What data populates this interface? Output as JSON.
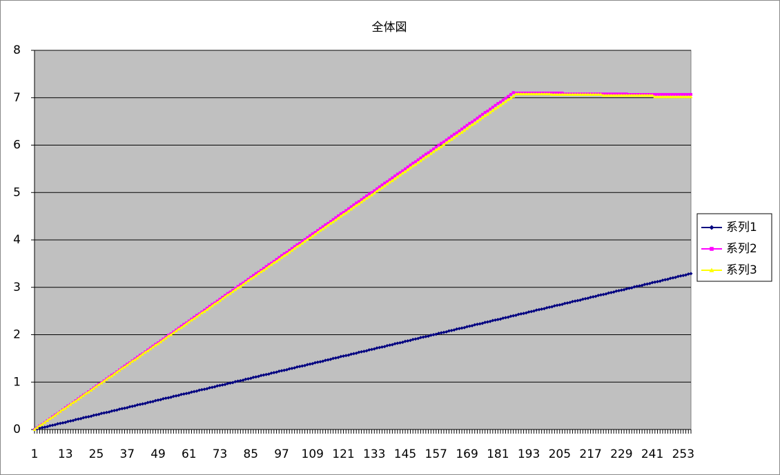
{
  "chart_data": {
    "type": "line",
    "title": "全体図",
    "categories": [
      1,
      null,
      null,
      null,
      null,
      null,
      null,
      null,
      null,
      null,
      null,
      null,
      13,
      null,
      null,
      null,
      null,
      null,
      null,
      null,
      null,
      null,
      null,
      null,
      25,
      null,
      null,
      null,
      null,
      null,
      null,
      null,
      null,
      null,
      null,
      null,
      37,
      null,
      null,
      null,
      null,
      null,
      null,
      null,
      null,
      null,
      null,
      null,
      49,
      null,
      null,
      null,
      null,
      null,
      null,
      null,
      null,
      null,
      null,
      null,
      61,
      null,
      null,
      null,
      null,
      null,
      null,
      null,
      null,
      null,
      null,
      null,
      73,
      null,
      null,
      null,
      null,
      null,
      null,
      null,
      null,
      null,
      null,
      null,
      85,
      null,
      null,
      null,
      null,
      null,
      null,
      null,
      null,
      null,
      null,
      null,
      97,
      null,
      null,
      null,
      null,
      null,
      null,
      null,
      null,
      null,
      null,
      null,
      109,
      null,
      null,
      null,
      null,
      null,
      null,
      null,
      null,
      null,
      null,
      null,
      121,
      null,
      null,
      null,
      null,
      null,
      null,
      null,
      null,
      null,
      null,
      null,
      133,
      null,
      null,
      null,
      null,
      null,
      null,
      null,
      null,
      null,
      null,
      null,
      145,
      null,
      null,
      null,
      null,
      null,
      null,
      null,
      null,
      null,
      null,
      null,
      157,
      null,
      null,
      null,
      null,
      null,
      null,
      null,
      null,
      null,
      null,
      null,
      169,
      null,
      null,
      null,
      null,
      null,
      null,
      null,
      null,
      null,
      null,
      null,
      181,
      null,
      null,
      null,
      null,
      null,
      null,
      null,
      null,
      null,
      null,
      null,
      193,
      null,
      null,
      null,
      null,
      null,
      null,
      null,
      null,
      null,
      null,
      null,
      205,
      null,
      null,
      null,
      null,
      null,
      null,
      null,
      null,
      null,
      null,
      null,
      217,
      null,
      null,
      null,
      null,
      null,
      null,
      null,
      null,
      null,
      null,
      null,
      229,
      null,
      null,
      null,
      null,
      null,
      null,
      null,
      null,
      null,
      null,
      null,
      241,
      null,
      null,
      null,
      null,
      null,
      null,
      null,
      null,
      null,
      null,
      null,
      253,
      null,
      null,
      null
    ],
    "series": [
      {
        "name": "系列1",
        "color": "#000080",
        "marker": "diamond",
        "values": [
          0,
          0.01,
          0.03,
          0.04,
          0.05,
          0.06,
          0.08,
          0.09,
          0.1,
          0.12,
          0.13,
          0.14,
          0.15,
          0.17,
          0.18,
          0.19,
          0.21,
          0.22,
          0.23,
          0.25,
          0.26,
          0.27,
          0.28,
          0.3,
          0.31,
          0.32,
          0.34,
          0.35,
          0.36,
          0.37,
          0.39,
          0.4,
          0.41,
          0.43,
          0.44,
          0.45,
          0.46,
          0.48,
          0.49,
          0.5,
          0.52,
          0.53,
          0.54,
          0.55,
          0.57,
          0.58,
          0.59,
          0.61,
          0.62,
          0.63,
          0.65,
          0.66,
          0.67,
          0.68,
          0.7,
          0.71,
          0.72,
          0.74,
          0.75,
          0.76,
          0.77,
          0.79,
          0.8,
          0.81,
          0.83,
          0.84,
          0.85,
          0.86,
          0.88,
          0.89,
          0.9,
          0.92,
          0.93,
          0.94,
          0.95,
          0.97,
          0.98,
          0.99,
          1.01,
          1.02,
          1.03,
          1.04,
          1.06,
          1.07,
          1.08,
          1.1,
          1.11,
          1.12,
          1.14,
          1.15,
          1.16,
          1.17,
          1.19,
          1.2,
          1.21,
          1.23,
          1.24,
          1.25,
          1.26,
          1.28,
          1.29,
          1.3,
          1.32,
          1.33,
          1.34,
          1.35,
          1.37,
          1.38,
          1.39,
          1.41,
          1.42,
          1.43,
          1.44,
          1.46,
          1.47,
          1.48,
          1.5,
          1.51,
          1.52,
          1.54,
          1.55,
          1.56,
          1.57,
          1.59,
          1.6,
          1.61,
          1.63,
          1.64,
          1.65,
          1.66,
          1.68,
          1.69,
          1.7,
          1.72,
          1.73,
          1.74,
          1.75,
          1.77,
          1.78,
          1.79,
          1.81,
          1.82,
          1.83,
          1.84,
          1.86,
          1.87,
          1.88,
          1.9,
          1.91,
          1.92,
          1.94,
          1.95,
          1.96,
          1.97,
          1.99,
          2,
          2.01,
          2.03,
          2.04,
          2.05,
          2.06,
          2.08,
          2.09,
          2.1,
          2.12,
          2.13,
          2.14,
          2.15,
          2.17,
          2.18,
          2.19,
          2.21,
          2.22,
          2.23,
          2.24,
          2.26,
          2.27,
          2.28,
          2.3,
          2.31,
          2.32,
          2.33,
          2.35,
          2.36,
          2.37,
          2.39,
          2.4,
          2.41,
          2.43,
          2.44,
          2.45,
          2.46,
          2.48,
          2.49,
          2.5,
          2.52,
          2.53,
          2.54,
          2.55,
          2.57,
          2.58,
          2.59,
          2.61,
          2.62,
          2.63,
          2.64,
          2.66,
          2.67,
          2.68,
          2.7,
          2.71,
          2.72,
          2.73,
          2.75,
          2.76,
          2.77,
          2.79,
          2.8,
          2.81,
          2.83,
          2.84,
          2.85,
          2.86,
          2.88,
          2.89,
          2.9,
          2.92,
          2.93,
          2.94,
          2.95,
          2.97,
          2.98,
          2.99,
          3.01,
          3.02,
          3.03,
          3.04,
          3.06,
          3.07,
          3.08,
          3.1,
          3.11,
          3.12,
          3.13,
          3.15,
          3.16,
          3.17,
          3.19,
          3.2,
          3.21,
          3.23,
          3.24,
          3.25,
          3.26,
          3.28,
          3.29
        ]
      },
      {
        "name": "系列2",
        "color": "#ff00ff",
        "marker": "square",
        "values": [
          0,
          0.04,
          0.08,
          0.11,
          0.15,
          0.19,
          0.23,
          0.27,
          0.31,
          0.34,
          0.38,
          0.42,
          0.46,
          0.5,
          0.53,
          0.57,
          0.61,
          0.65,
          0.69,
          0.73,
          0.76,
          0.8,
          0.84,
          0.88,
          0.92,
          0.96,
          0.99,
          1.03,
          1.07,
          1.11,
          1.15,
          1.18,
          1.22,
          1.26,
          1.3,
          1.34,
          1.38,
          1.41,
          1.45,
          1.49,
          1.53,
          1.57,
          1.6,
          1.64,
          1.68,
          1.72,
          1.76,
          1.8,
          1.83,
          1.87,
          1.91,
          1.95,
          1.99,
          2.02,
          2.06,
          2.1,
          2.14,
          2.18,
          2.22,
          2.25,
          2.29,
          2.33,
          2.37,
          2.41,
          2.44,
          2.48,
          2.52,
          2.56,
          2.6,
          2.64,
          2.67,
          2.71,
          2.75,
          2.79,
          2.83,
          2.87,
          2.9,
          2.94,
          2.98,
          3.02,
          3.06,
          3.09,
          3.13,
          3.17,
          3.21,
          3.25,
          3.29,
          3.32,
          3.36,
          3.4,
          3.44,
          3.48,
          3.51,
          3.55,
          3.59,
          3.63,
          3.67,
          3.71,
          3.74,
          3.78,
          3.82,
          3.86,
          3.9,
          3.93,
          3.97,
          4.01,
          4.05,
          4.09,
          4.13,
          4.16,
          4.2,
          4.24,
          4.28,
          4.32,
          4.35,
          4.39,
          4.43,
          4.47,
          4.51,
          4.55,
          4.58,
          4.62,
          4.66,
          4.7,
          4.74,
          4.78,
          4.81,
          4.85,
          4.89,
          4.93,
          4.97,
          5,
          5.04,
          5.08,
          5.12,
          5.16,
          5.2,
          5.23,
          5.27,
          5.31,
          5.35,
          5.39,
          5.42,
          5.46,
          5.5,
          5.54,
          5.58,
          5.62,
          5.65,
          5.69,
          5.73,
          5.77,
          5.81,
          5.84,
          5.88,
          5.92,
          5.96,
          6,
          6.04,
          6.07,
          6.11,
          6.15,
          6.19,
          6.23,
          6.26,
          6.3,
          6.34,
          6.38,
          6.42,
          6.46,
          6.49,
          6.53,
          6.57,
          6.61,
          6.65,
          6.69,
          6.72,
          6.76,
          6.8,
          6.84,
          6.88,
          6.91,
          6.95,
          6.99,
          7.03,
          7.07,
          7.11,
          7.1,
          7.1,
          7.1,
          7.1,
          7.1,
          7.1,
          7.1,
          7.1,
          7.1,
          7.1,
          7.1,
          7.1,
          7.1,
          7.1,
          7.1,
          7.1,
          7.1,
          7.1,
          7.1,
          7.08,
          7.08,
          7.08,
          7.08,
          7.08,
          7.08,
          7.08,
          7.08,
          7.08,
          7.08,
          7.08,
          7.08,
          7.08,
          7.08,
          7.08,
          7.08,
          7.08,
          7.08,
          7.08,
          7.08,
          7.08,
          7.08,
          7.08,
          7.08,
          7.08,
          7.07,
          7.07,
          7.07,
          7.07,
          7.07,
          7.07,
          7.07,
          7.07,
          7.07,
          7.07,
          7.07,
          7.07,
          7.07,
          7.07,
          7.07,
          7.07,
          7.07,
          7.07,
          7.07,
          7.07,
          7.07,
          7.07,
          7.07,
          7.07,
          7.07
        ]
      },
      {
        "name": "系列3",
        "color": "#ffff00",
        "marker": "triangle",
        "values": [
          0,
          0.04,
          0.08,
          0.11,
          0.15,
          0.19,
          0.23,
          0.26,
          0.3,
          0.34,
          0.38,
          0.42,
          0.45,
          0.49,
          0.53,
          0.57,
          0.6,
          0.64,
          0.68,
          0.72,
          0.76,
          0.79,
          0.83,
          0.87,
          0.91,
          0.95,
          0.98,
          1.02,
          1.06,
          1.1,
          1.13,
          1.17,
          1.21,
          1.25,
          1.29,
          1.32,
          1.36,
          1.4,
          1.44,
          1.47,
          1.51,
          1.55,
          1.59,
          1.63,
          1.66,
          1.7,
          1.74,
          1.78,
          1.81,
          1.85,
          1.89,
          1.93,
          1.97,
          2,
          2.04,
          2.08,
          2.12,
          2.15,
          2.19,
          2.23,
          2.27,
          2.31,
          2.34,
          2.38,
          2.42,
          2.46,
          2.49,
          2.53,
          2.57,
          2.61,
          2.65,
          2.68,
          2.72,
          2.76,
          2.8,
          2.84,
          2.87,
          2.91,
          2.95,
          2.99,
          3.02,
          3.06,
          3.1,
          3.14,
          3.18,
          3.21,
          3.25,
          3.29,
          3.33,
          3.36,
          3.4,
          3.44,
          3.48,
          3.52,
          3.55,
          3.59,
          3.63,
          3.67,
          3.7,
          3.74,
          3.78,
          3.82,
          3.86,
          3.89,
          3.93,
          3.97,
          4.01,
          4.04,
          4.08,
          4.12,
          4.16,
          4.2,
          4.23,
          4.27,
          4.31,
          4.35,
          4.38,
          4.42,
          4.46,
          4.5,
          4.54,
          4.57,
          4.61,
          4.65,
          4.69,
          4.73,
          4.76,
          4.8,
          4.84,
          4.88,
          4.91,
          4.95,
          4.99,
          5.03,
          5.07,
          5.1,
          5.14,
          5.18,
          5.22,
          5.25,
          5.29,
          5.33,
          5.37,
          5.41,
          5.44,
          5.48,
          5.52,
          5.56,
          5.59,
          5.63,
          5.67,
          5.71,
          5.75,
          5.78,
          5.82,
          5.86,
          5.9,
          5.93,
          5.97,
          6.01,
          6.05,
          6.09,
          6.12,
          6.16,
          6.2,
          6.24,
          6.27,
          6.31,
          6.35,
          6.39,
          6.43,
          6.46,
          6.5,
          6.54,
          6.58,
          6.62,
          6.65,
          6.69,
          6.73,
          6.77,
          6.8,
          6.84,
          6.88,
          6.92,
          6.96,
          6.99,
          7.03,
          7.08,
          7.08,
          7.08,
          7.08,
          7.08,
          7.08,
          7.08,
          7.08,
          7.08,
          7.08,
          7.08,
          7.08,
          7.08,
          7.08,
          7.07,
          7.07,
          7.07,
          7.07,
          7.07,
          7.07,
          7.07,
          7.07,
          7.07,
          7.07,
          7.07,
          7.07,
          7.07,
          7.07,
          7.07,
          7.07,
          7.07,
          7.07,
          7.07,
          7.07,
          7.05,
          7.05,
          7.05,
          7.05,
          7.05,
          7.05,
          7.05,
          7.05,
          7.05,
          7.05,
          7.05,
          7.05,
          7.05,
          7.05,
          7.05,
          7.05,
          7.05,
          7.05,
          7.05,
          7.05,
          7.02,
          7.02,
          7.02,
          7.02,
          7.02,
          7.02,
          7.02,
          7.02,
          7.02,
          7.02,
          7.02,
          7.02,
          7.02,
          7.02,
          7.02
        ]
      }
    ],
    "ylim": [
      0,
      8
    ],
    "yticks": [
      0,
      1,
      2,
      3,
      4,
      5,
      6,
      7,
      8
    ],
    "grid": true,
    "plot_background": "#c0c0c0",
    "legend": "right"
  }
}
